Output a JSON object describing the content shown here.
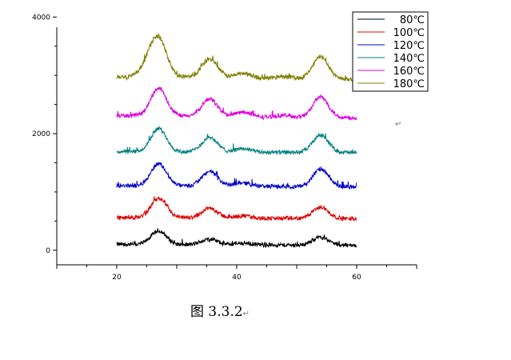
{
  "chart_data": {
    "type": "line",
    "xlabel": "",
    "ylabel": "",
    "xlim": [
      10,
      70
    ],
    "ylim": [
      -250,
      4100
    ],
    "x_ticks": [
      20,
      40,
      60
    ],
    "y_ticks": [
      0,
      2000,
      4000
    ],
    "grid": false,
    "legend_position": "top-right",
    "x_start": 20,
    "x_end": 60,
    "peaks_note": "broad peaks near 27, 35.5, 41, 48, 54",
    "series": [
      {
        "name": "80℃",
        "color": "#000000",
        "baseline": 100,
        "slope": -0.4,
        "peaks": [
          [
            27,
            230
          ],
          [
            35.5,
            100
          ],
          [
            41,
            30
          ],
          [
            54,
            140
          ]
        ],
        "noise": 45
      },
      {
        "name": "100℃",
        "color": "#dd0000",
        "baseline": 560,
        "slope": -0.5,
        "peaks": [
          [
            27,
            330
          ],
          [
            35.5,
            170
          ],
          [
            41,
            40
          ],
          [
            54,
            190
          ]
        ],
        "noise": 45
      },
      {
        "name": "120℃",
        "color": "#0000cc",
        "baseline": 1110,
        "slope": -0.6,
        "peaks": [
          [
            27,
            380
          ],
          [
            35.5,
            250
          ],
          [
            41,
            60
          ],
          [
            54,
            300
          ]
        ],
        "noise": 45
      },
      {
        "name": "140℃",
        "color": "#008080",
        "baseline": 1690,
        "slope": -0.4,
        "peaks": [
          [
            27,
            400
          ],
          [
            35.5,
            250
          ],
          [
            41,
            60
          ],
          [
            54,
            300
          ]
        ],
        "noise": 45
      },
      {
        "name": "160℃",
        "color": "#dd00dd",
        "baseline": 2310,
        "slope": -1.0,
        "peaks": [
          [
            27,
            480
          ],
          [
            35.5,
            300
          ],
          [
            41,
            80
          ],
          [
            48,
            30
          ],
          [
            54,
            350
          ]
        ],
        "noise": 45
      },
      {
        "name": "180℃",
        "color": "#808000",
        "baseline": 2980,
        "slope": -1.2,
        "peaks": [
          [
            25.7,
            300
          ],
          [
            27.2,
            520
          ],
          [
            35.5,
            320
          ],
          [
            41,
            80
          ],
          [
            48,
            40
          ],
          [
            54,
            380
          ]
        ],
        "noise": 50
      }
    ]
  },
  "caption": "图 3.3.2",
  "return_mark": "↵"
}
